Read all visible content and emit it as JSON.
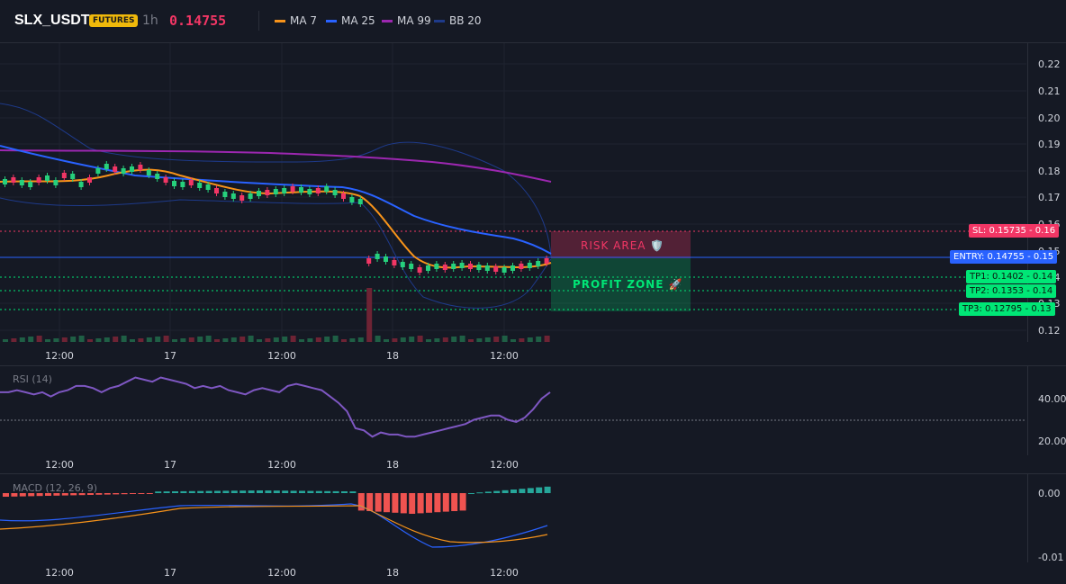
{
  "header": {
    "symbol": "SLX_USDT",
    "badge": "FUTURES",
    "timeframe": "1h",
    "price": "0.14755",
    "legend": [
      {
        "label": "MA 7",
        "color": "#f7931a"
      },
      {
        "label": "MA 25",
        "color": "#2962ff"
      },
      {
        "label": "MA 99",
        "color": "#9c27b0"
      },
      {
        "label": "BB 20",
        "color": "#1e3a8a"
      }
    ]
  },
  "price_axis": [
    "0.22",
    "0.21",
    "0.20",
    "0.19",
    "0.18",
    "0.17",
    "0.16",
    "0.15",
    "0.14",
    "0.13",
    "0.12"
  ],
  "time_axis": [
    "12:00",
    "17",
    "12:00",
    "18",
    "12:00"
  ],
  "levels": {
    "sl": {
      "label": "SL: 0.15735",
      "value": "0.16",
      "color": "#f23665"
    },
    "entry": {
      "label": "ENTRY: 0.14755",
      "value": "0.15",
      "color": "#2962ff"
    },
    "tp1": {
      "label": "TP1: 0.1402",
      "value": "0.14",
      "color": "#00e676"
    },
    "tp2": {
      "label": "TP2: 0.1353",
      "value": "0.14",
      "color": "#00e676"
    },
    "tp3": {
      "label": "TP3: 0.12795",
      "value": "0.13",
      "color": "#00e676"
    }
  },
  "zones": {
    "risk": "RISK AREA 🛡️",
    "profit": "PROFIT ZONE 🚀"
  },
  "rsi": {
    "title": "RSI (14)",
    "axis": [
      "40.00",
      "20.00"
    ],
    "values": [
      43,
      43,
      44,
      43,
      42,
      43,
      41,
      43,
      44,
      46,
      46,
      45,
      43,
      45,
      46,
      48,
      50,
      49,
      48,
      50,
      49,
      48,
      47,
      45,
      46,
      45,
      46,
      44,
      43,
      42,
      44,
      45,
      44,
      43,
      46,
      47,
      46,
      45,
      44,
      41,
      38,
      34,
      26,
      25,
      22,
      24,
      23,
      23,
      22,
      22,
      23,
      24,
      25,
      26,
      27,
      28,
      30,
      31,
      32,
      32,
      30,
      29,
      31,
      35,
      40,
      43
    ]
  },
  "macd": {
    "title": "MACD (12, 26, 9)",
    "axis": [
      "0.00",
      "-0.01"
    ]
  },
  "chart_data": {
    "type": "candlestick",
    "price_range": [
      0.115,
      0.225
    ],
    "indicators": [
      "MA 7",
      "MA 25",
      "MA 99",
      "BB 20"
    ],
    "last_price": 0.14755
  }
}
